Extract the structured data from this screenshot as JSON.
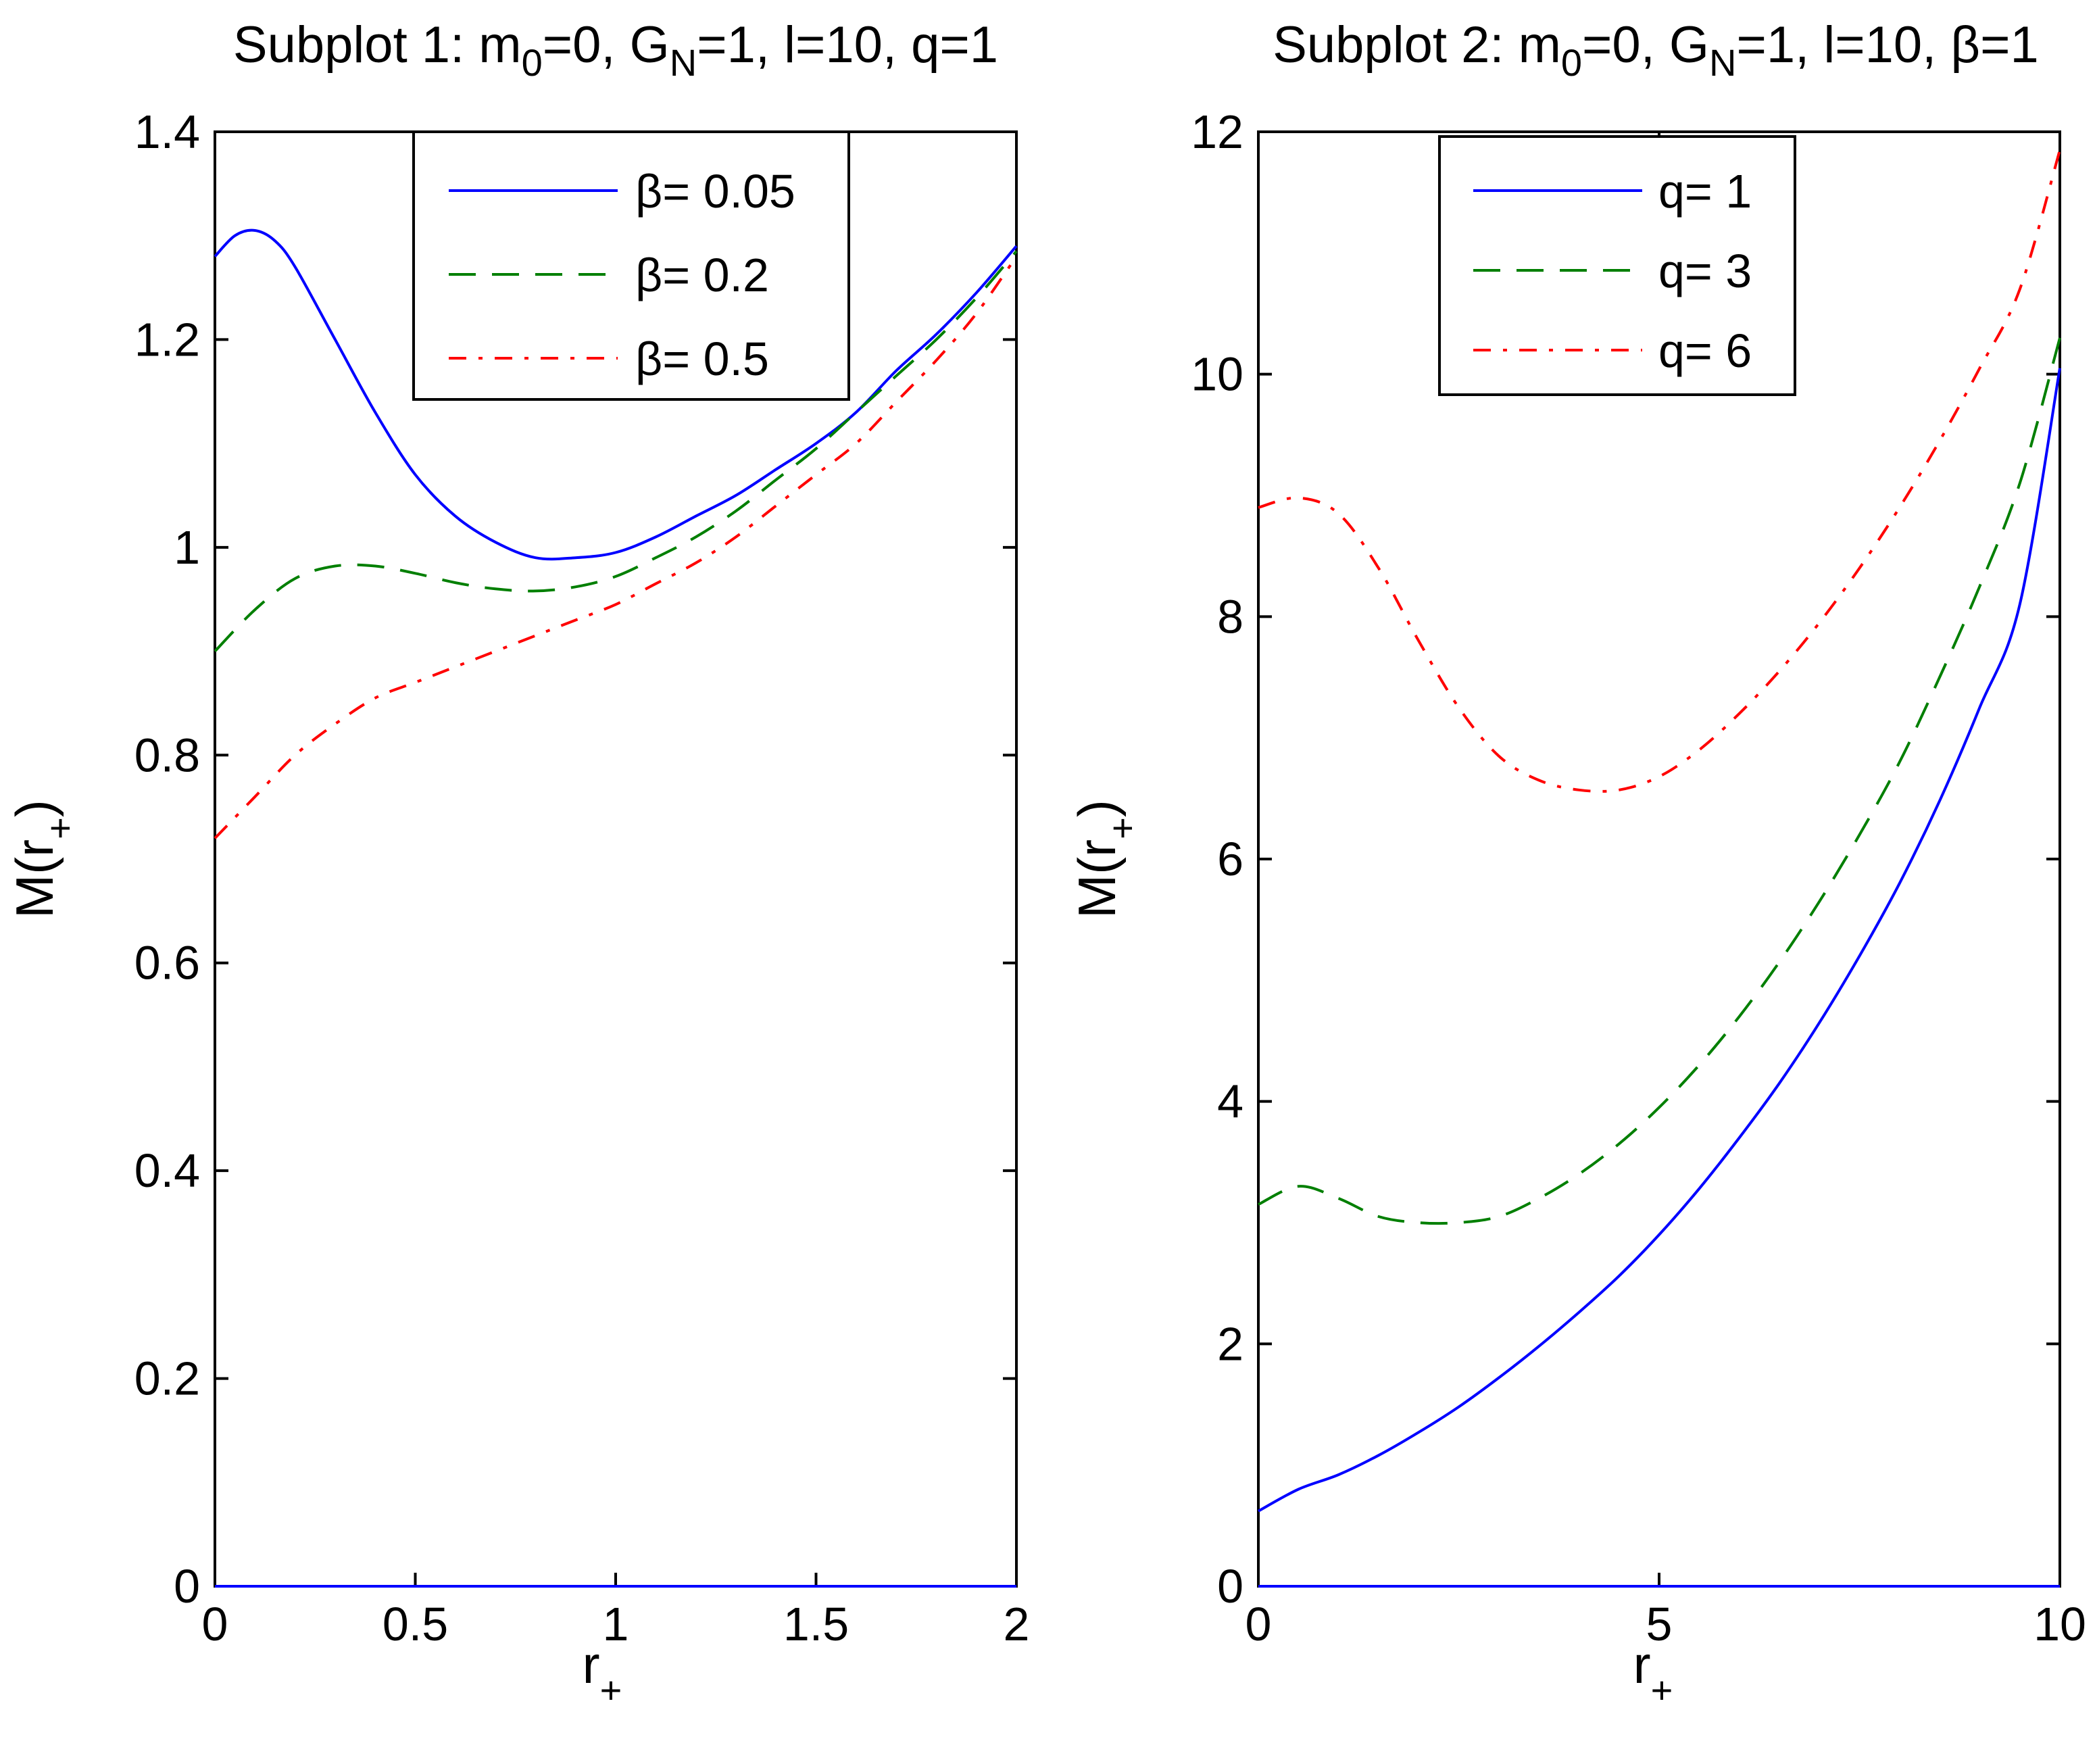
{
  "figure": {
    "subplot1": {
      "title_main": "Subplot 1: m",
      "title_sub0": "0",
      "title_mid": "=0, G",
      "title_sub1": "N",
      "title_end": "=1, l=10, q=1",
      "xlabel": "r",
      "xlabel_sub": "+",
      "ylabel": "M(r",
      "ylabel_sub": "+",
      "ylabel_close": ")"
    },
    "subplot2": {
      "title_main": "Subplot 2: m",
      "title_sub0": "0",
      "title_mid": "=0, G",
      "title_sub1": "N",
      "title_end": "=1, l=10, β=1",
      "xlabel": "r",
      "xlabel_sub": "+",
      "ylabel": "M(r",
      "ylabel_sub": "+",
      "ylabel_close": ")"
    }
  },
  "chart_data": [
    {
      "type": "line",
      "title": "Subplot 1: m0=0, GN=1, l=10, q=1",
      "xlabel": "r+",
      "ylabel": "M(r+)",
      "xlim": [
        0,
        2
      ],
      "ylim": [
        0,
        1.4
      ],
      "xticks": [
        0,
        0.5,
        1,
        1.5,
        2
      ],
      "xtick_labels": [
        "0",
        "0.5",
        "1",
        "1.5",
        "2"
      ],
      "yticks": [
        0,
        0.2,
        0.4,
        0.6,
        0.8,
        1,
        1.2,
        1.4
      ],
      "ytick_labels": [
        "0",
        "0.2",
        "0.4",
        "0.6",
        "0.8",
        "1",
        "1.2",
        "1.4"
      ],
      "grid": false,
      "legend_position": "top-center",
      "series": [
        {
          "name": "β= 0.05",
          "color": "#0000ff",
          "style": "solid",
          "x": [
            0,
            0.05,
            0.1,
            0.15,
            0.2,
            0.3,
            0.4,
            0.5,
            0.6,
            0.7,
            0.8,
            0.9,
            1.0,
            1.1,
            1.2,
            1.3,
            1.4,
            1.5,
            1.6,
            1.7,
            1.8,
            1.9,
            2.0
          ],
          "y": [
            1.28,
            1.3,
            1.305,
            1.295,
            1.27,
            1.2,
            1.13,
            1.07,
            1.03,
            1.005,
            0.99,
            0.99,
            0.995,
            1.01,
            1.03,
            1.05,
            1.075,
            1.1,
            1.13,
            1.17,
            1.205,
            1.245,
            1.29
          ]
        },
        {
          "name": "β= 0.2",
          "color": "#007f00",
          "style": "dashed",
          "x": [
            0,
            0.1,
            0.2,
            0.3,
            0.4,
            0.5,
            0.6,
            0.7,
            0.8,
            0.9,
            1.0,
            1.1,
            1.2,
            1.3,
            1.4,
            1.5,
            1.6,
            1.7,
            1.8,
            1.9,
            2.0
          ],
          "y": [
            0.9,
            0.94,
            0.97,
            0.982,
            0.982,
            0.975,
            0.966,
            0.96,
            0.958,
            0.962,
            0.972,
            0.99,
            1.01,
            1.035,
            1.065,
            1.095,
            1.13,
            1.165,
            1.2,
            1.24,
            1.285
          ]
        },
        {
          "name": "β= 0.5",
          "color": "#ff0000",
          "style": "dashdot",
          "x": [
            0,
            0.1,
            0.2,
            0.3,
            0.4,
            0.5,
            0.6,
            0.7,
            0.8,
            0.9,
            1.0,
            1.1,
            1.2,
            1.3,
            1.4,
            1.5,
            1.6,
            1.7,
            1.8,
            1.9,
            2.0
          ],
          "y": [
            0.72,
            0.76,
            0.8,
            0.83,
            0.855,
            0.87,
            0.885,
            0.9,
            0.915,
            0.93,
            0.945,
            0.965,
            0.985,
            1.01,
            1.04,
            1.07,
            1.1,
            1.14,
            1.18,
            1.225,
            1.28
          ]
        },
        {
          "name": "zero-baseline",
          "color": "#0000ff",
          "style": "solid",
          "legend": false,
          "x": [
            0,
            2
          ],
          "y": [
            0,
            0
          ]
        }
      ]
    },
    {
      "type": "line",
      "title": "Subplot 2: m0=0, GN=1, l=10, β=1",
      "xlabel": "r+",
      "ylabel": "M(r+)",
      "xlim": [
        0,
        10
      ],
      "ylim": [
        0,
        12
      ],
      "xticks": [
        0,
        5,
        10
      ],
      "xtick_labels": [
        "0",
        "5",
        "10"
      ],
      "yticks": [
        0,
        2,
        4,
        6,
        8,
        10,
        12
      ],
      "ytick_labels": [
        "0",
        "2",
        "4",
        "6",
        "8",
        "10",
        "12"
      ],
      "grid": false,
      "legend_position": "top-center",
      "series": [
        {
          "name": "q= 1",
          "color": "#0000ff",
          "style": "solid",
          "x": [
            0,
            0.5,
            1,
            1.5,
            2,
            2.5,
            3,
            3.5,
            4,
            4.5,
            5,
            5.5,
            6,
            6.5,
            7,
            7.5,
            8,
            8.5,
            9,
            9.5,
            10
          ],
          "y": [
            0.62,
            0.8,
            0.92,
            1.08,
            1.27,
            1.48,
            1.72,
            1.98,
            2.26,
            2.56,
            2.9,
            3.28,
            3.7,
            4.15,
            4.65,
            5.2,
            5.8,
            6.48,
            7.25,
            8.1,
            10.05
          ]
        },
        {
          "name": "q= 3",
          "color": "#007f00",
          "style": "dashed",
          "x": [
            0,
            0.5,
            1,
            1.5,
            2,
            2.5,
            3,
            3.5,
            4,
            4.5,
            5,
            5.5,
            6,
            6.5,
            7,
            7.5,
            8,
            8.5,
            9,
            9.5,
            10
          ],
          "y": [
            3.15,
            3.3,
            3.2,
            3.05,
            3.0,
            3.0,
            3.05,
            3.2,
            3.4,
            3.65,
            3.95,
            4.3,
            4.7,
            5.15,
            5.65,
            6.2,
            6.8,
            7.5,
            8.25,
            9.1,
            10.3
          ]
        },
        {
          "name": "q= 6",
          "color": "#ff0000",
          "style": "dashdot",
          "x": [
            0,
            0.5,
            1,
            1.5,
            2,
            2.5,
            3,
            3.5,
            4,
            4.5,
            5,
            5.5,
            6,
            6.5,
            7,
            7.5,
            8,
            8.5,
            9,
            9.5,
            10
          ],
          "y": [
            8.9,
            8.98,
            8.85,
            8.4,
            7.8,
            7.25,
            6.85,
            6.65,
            6.57,
            6.57,
            6.68,
            6.9,
            7.2,
            7.55,
            7.95,
            8.4,
            8.9,
            9.45,
            10.05,
            10.7,
            11.85
          ]
        },
        {
          "name": "zero-baseline",
          "color": "#0000ff",
          "style": "solid",
          "legend": false,
          "x": [
            0,
            10
          ],
          "y": [
            0,
            0
          ]
        }
      ]
    }
  ]
}
